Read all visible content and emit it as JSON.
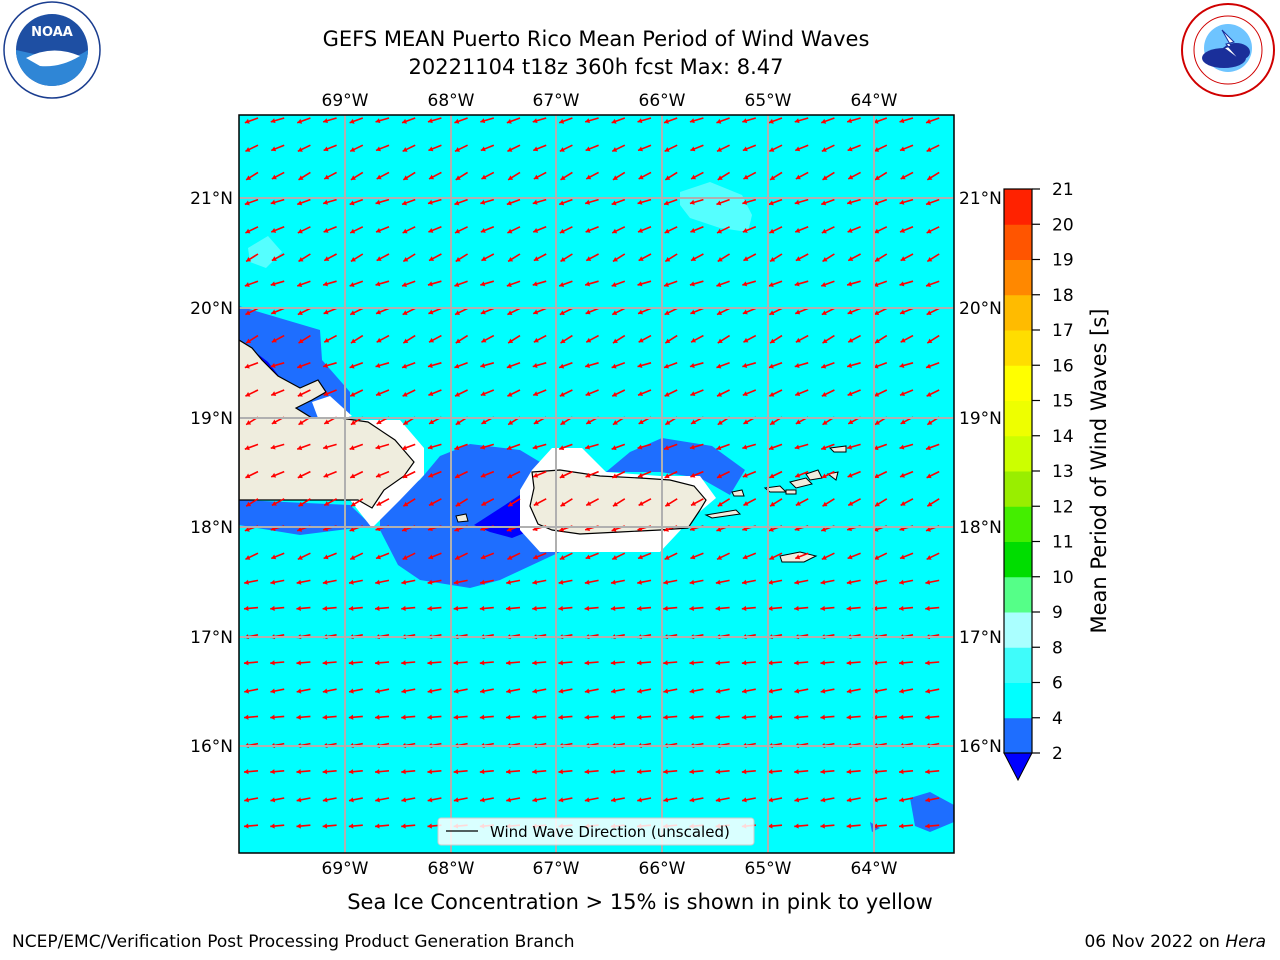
{
  "header": {
    "title_line1": "GEFS MEAN Puerto Rico Mean Period of Wind Waves",
    "title_line2": "20221104 t18z 360h fcst   Max: 8.47"
  },
  "logos": {
    "left": "noaa-logo",
    "left_text": "NOAA",
    "left_ring_text": "NATIONAL OCEANIC AND ATMOSPHERIC ADMINISTRATION · U.S. DEPARTMENT OF COMMERCE",
    "right": "nws-logo",
    "right_ring_text": "NATIONAL WEATHER SERVICE"
  },
  "map": {
    "lon_labels": [
      "69°W",
      "68°W",
      "67°W",
      "66°W",
      "65°W",
      "64°W"
    ],
    "lat_labels": [
      "21°N",
      "20°N",
      "19°N",
      "18°N",
      "17°N",
      "16°N"
    ],
    "legend_label": "Wind Wave Direction (unscaled)",
    "ocean_color": "#00ffff",
    "land_color": "#efedde",
    "arrow_color": "#ff0000"
  },
  "colorbar": {
    "label": "Mean Period of Wind Waves [s]",
    "ticks": [
      "2",
      "4",
      "6",
      "8",
      "9",
      "10",
      "11",
      "12",
      "13",
      "14",
      "15",
      "16",
      "17",
      "18",
      "19",
      "20",
      "21"
    ],
    "colors": [
      "#1e6eff",
      "#00ffff",
      "#3ffcfa",
      "#aaffff",
      "#55ff88",
      "#00dd00",
      "#44ee00",
      "#99ee00",
      "#ccff00",
      "#eeff00",
      "#ffff00",
      "#ffdd00",
      "#ffbb00",
      "#ff8800",
      "#ff5500",
      "#ff2200",
      "#ff0000"
    ],
    "under_color": "#0000ff"
  },
  "footer": {
    "subnote": "Sea Ice Concentration > 15% is shown in pink to yellow",
    "left": "NCEP/EMC/Verification Post Processing Product Generation Branch",
    "date": "06 Nov 2022 on ",
    "machine": "Hera"
  }
}
